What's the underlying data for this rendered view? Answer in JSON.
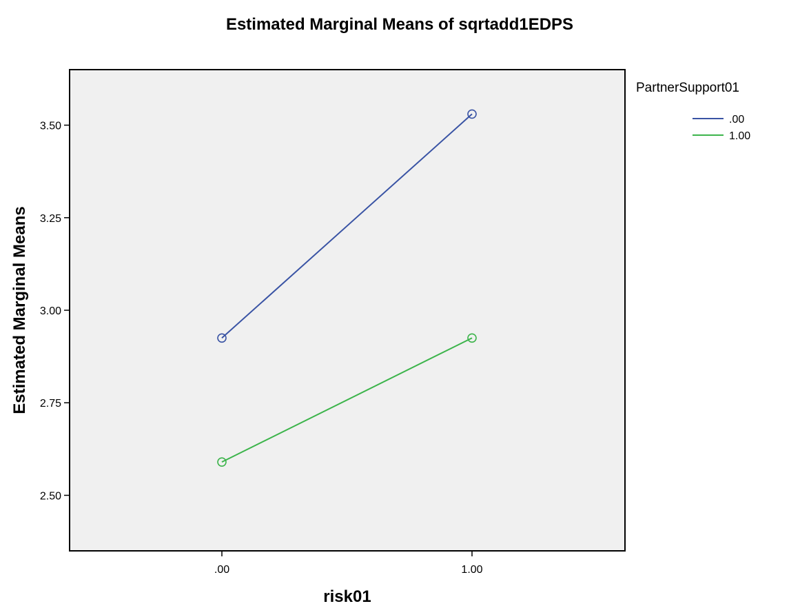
{
  "chart_data": {
    "type": "line",
    "title": "Estimated Marginal Means of sqrtadd1EDPS",
    "xlabel": "risk01",
    "ylabel": "Estimated Marginal Means",
    "categories": [
      ".00",
      "1.00"
    ],
    "ylim": [
      2.35,
      3.65
    ],
    "yticks": [
      2.5,
      2.75,
      3.0,
      3.25,
      3.5
    ],
    "ytick_labels": [
      "2.50",
      "2.75",
      "3.00",
      "3.25",
      "3.50"
    ],
    "grid": false,
    "legend": {
      "title": "PartnerSupport01",
      "placement": "top-right-outside"
    },
    "series": [
      {
        "name": ".00",
        "color": "#3953a4",
        "values": [
          2.925,
          3.53
        ]
      },
      {
        "name": "1.00",
        "color": "#3cb44b",
        "values": [
          2.59,
          2.925
        ]
      }
    ],
    "plot_background": "#f0f0f0",
    "marker": "open-circle"
  }
}
